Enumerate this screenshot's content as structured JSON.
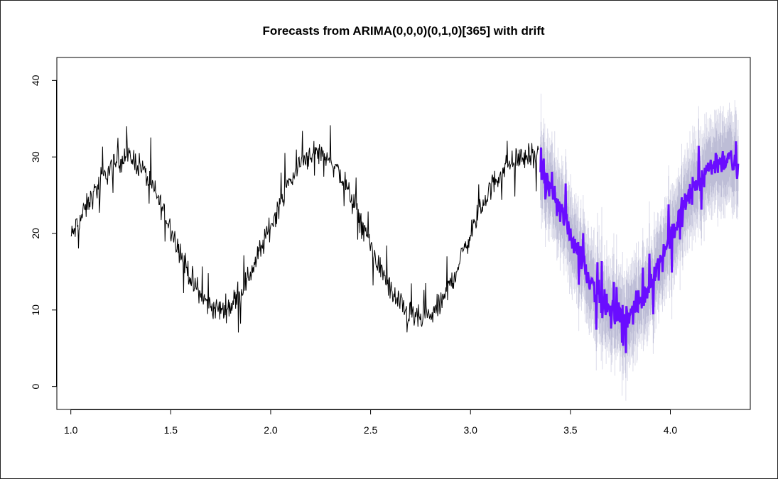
{
  "chart_data": {
    "type": "line",
    "title": "Forecasts from ARIMA(0,0,0)(0,1,0)[365] with drift",
    "xlabel": "",
    "ylabel": "",
    "xlim": [
      0.93,
      4.4
    ],
    "ylim": [
      -3,
      43
    ],
    "x_ticks": [
      1.0,
      1.5,
      2.0,
      2.5,
      3.0,
      3.5,
      4.0
    ],
    "x_tick_labels": [
      "1.0",
      "1.5",
      "2.0",
      "2.5",
      "3.0",
      "3.5",
      "4.0"
    ],
    "y_ticks": [
      0,
      10,
      20,
      30,
      40
    ],
    "y_tick_labels": [
      "0",
      "10",
      "20",
      "30",
      "40"
    ],
    "grid": false,
    "legend": "none",
    "colors": {
      "observed": "#000000",
      "forecast": "#6a0dff",
      "interval_95": "#dcdcea",
      "interval_80": "#bdbdd6"
    },
    "series": [
      {
        "role": "observed",
        "x": [
          1.0,
          1.05,
          1.1,
          1.15,
          1.2,
          1.25,
          1.3,
          1.35,
          1.4,
          1.45,
          1.5,
          1.55,
          1.6,
          1.65,
          1.7,
          1.75,
          1.8,
          1.85,
          1.9,
          1.95,
          2.0,
          2.05,
          2.1,
          2.15,
          2.2,
          2.25,
          2.3,
          2.35,
          2.4,
          2.45,
          2.5,
          2.55,
          2.6,
          2.65,
          2.7,
          2.75,
          2.8,
          2.85,
          2.9,
          2.95,
          3.0,
          3.05,
          3.1,
          3.15,
          3.2,
          3.25,
          3.3,
          3.34
        ],
        "y": [
          19.5,
          22.0,
          24.5,
          26.8,
          28.6,
          29.8,
          30.0,
          28.8,
          26.5,
          23.8,
          20.8,
          17.4,
          14.2,
          11.8,
          10.4,
          10.0,
          10.6,
          12.3,
          14.9,
          17.9,
          21.0,
          24.2,
          27.0,
          29.2,
          30.5,
          30.6,
          29.6,
          27.6,
          24.8,
          21.6,
          18.4,
          15.3,
          12.6,
          10.6,
          9.3,
          8.8,
          9.2,
          10.7,
          13.4,
          16.6,
          20.0,
          23.2,
          25.9,
          27.9,
          29.3,
          29.9,
          30.1,
          29.8
        ],
        "noise_amplitude": 2.4
      },
      {
        "role": "forecast",
        "x": [
          3.35,
          3.4,
          3.45,
          3.5,
          3.55,
          3.6,
          3.65,
          3.7,
          3.75,
          3.8,
          3.85,
          3.9,
          3.95,
          4.0,
          4.05,
          4.1,
          4.15,
          4.2,
          4.25,
          4.3,
          4.34
        ],
        "y": [
          27.5,
          25.5,
          23.0,
          20.0,
          17.0,
          14.0,
          11.5,
          9.8,
          9.0,
          9.5,
          11.0,
          13.5,
          16.5,
          19.5,
          22.5,
          25.2,
          27.3,
          28.8,
          29.6,
          29.5,
          28.0
        ],
        "noise_amplitude": 2.6,
        "interval_80_halfwidth": 3.5,
        "interval_95_halfwidth": 5.5
      }
    ]
  }
}
